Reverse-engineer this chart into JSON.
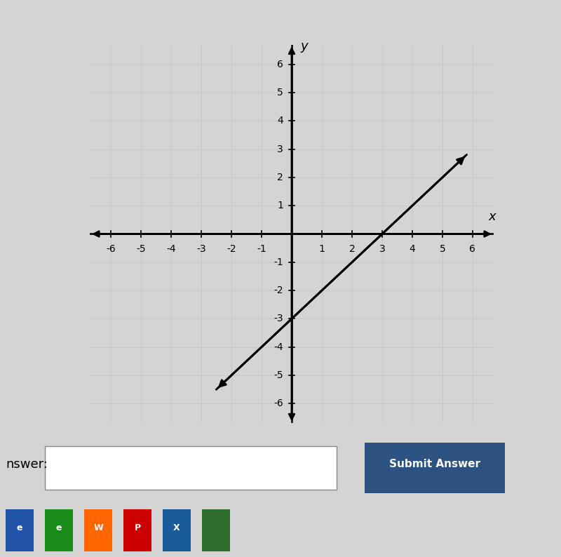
{
  "xlim": [
    -6.7,
    6.7
  ],
  "ylim": [
    -6.7,
    6.7
  ],
  "xticks": [
    -6,
    -5,
    -4,
    -3,
    -2,
    -1,
    1,
    2,
    3,
    4,
    5,
    6
  ],
  "yticks": [
    -6,
    -5,
    -4,
    -3,
    -2,
    -1,
    1,
    2,
    3,
    4,
    5,
    6
  ],
  "grid_color": "#c8c8c8",
  "axis_color": "#000000",
  "line_color": "#000000",
  "line_x1": -2.5,
  "line_y1": -5.5,
  "line_x2": 5.8,
  "line_y2": 2.8,
  "xlabel": "x",
  "ylabel": "y",
  "outer_bg": "#d4d4d4",
  "plot_area_bg": "#f5f5f5",
  "graph_bg": "#ffffff",
  "answer_area_bg": "#c8c8c8",
  "line_width": 2.0,
  "tick_fontsize": 10,
  "label_fontsize": 13,
  "taskbar_color": "#1a1a2e",
  "submit_btn_color": "#2c5282",
  "submit_btn_text": "Submit Answer",
  "answer_label": "nswer:"
}
